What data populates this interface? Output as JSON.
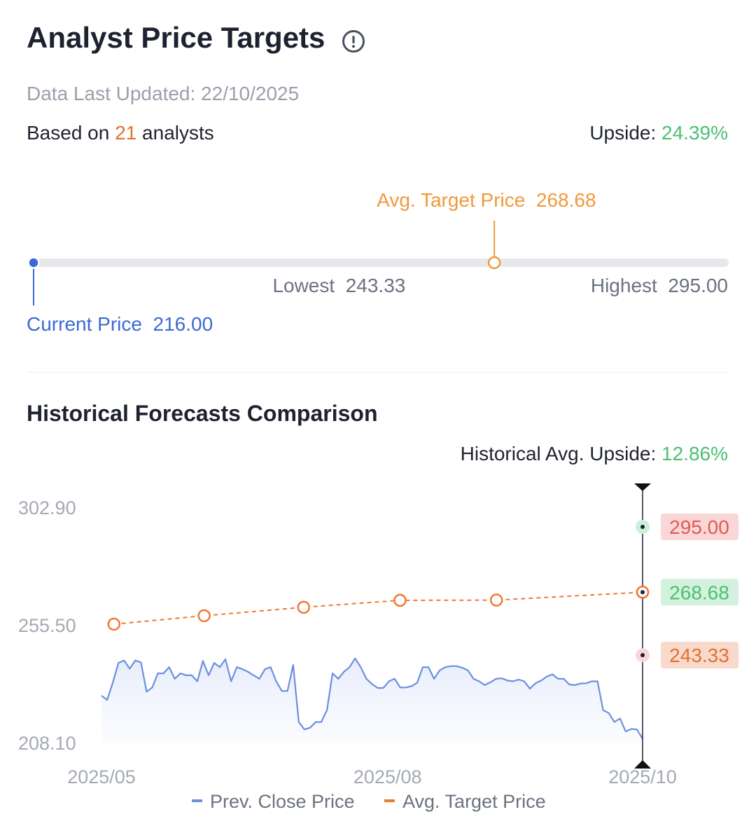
{
  "header": {
    "title": "Analyst Price Targets",
    "updated_label": "Data Last Updated: ",
    "updated_date": "22/10/2025",
    "based_prefix": "Based on ",
    "analyst_count": "21",
    "based_suffix": " analysts",
    "upside_label": "Upside: ",
    "upside_value": "24.39%"
  },
  "range": {
    "avg_label": "Avg. Target Price",
    "avg_value": "268.68",
    "lowest_label": "Lowest",
    "lowest_value": "243.33",
    "highest_label": "Highest",
    "highest_value": "295.00",
    "current_label": "Current Price",
    "current_value": "216.00",
    "scale_min": 216.0,
    "scale_max": 295.0,
    "colors": {
      "current": "#3d69d6",
      "track": "#e6e8ec",
      "low": "#e05a55",
      "mid": "#ee9a3a",
      "high": "#5cbe6e"
    }
  },
  "history": {
    "title": "Historical Forecasts Comparison",
    "upside_label": "Historical Avg. Upside: ",
    "upside_value": "12.86%"
  },
  "chart_data": {
    "type": "line",
    "y_ticks": [
      "302.90",
      "255.50",
      "208.10"
    ],
    "ylim": [
      208.1,
      302.9
    ],
    "x_ticks": [
      "2025/05",
      "2025/08",
      "2025/10"
    ],
    "x_range": [
      "2025-05-01",
      "2025-10-22"
    ],
    "x_tick_dates": [
      "2025-05-01",
      "2025-08-01",
      "2025-10-22"
    ],
    "legend_position": "bottom-center",
    "series": [
      {
        "name": "Prev. Close Price",
        "color": "#6c8fe0",
        "values": [
          227.0,
          225.3,
          232.2,
          240.2,
          241.2,
          237.9,
          241.2,
          240.4,
          228.6,
          230.3,
          236.0,
          236.0,
          238.5,
          233.8,
          236.0,
          235.2,
          235.2,
          232.8,
          241.0,
          235.2,
          240.2,
          238.5,
          241.7,
          232.8,
          238.5,
          237.7,
          236.6,
          235.2,
          233.8,
          237.7,
          238.5,
          232.8,
          228.9,
          228.9,
          239.4,
          216.4,
          213.4,
          214.1,
          216.4,
          216.4,
          221.2,
          236.0,
          233.8,
          236.6,
          238.5,
          242.0,
          238.5,
          233.8,
          231.7,
          230.1,
          230.1,
          232.8,
          233.8,
          230.3,
          230.3,
          230.8,
          232.2,
          238.5,
          238.5,
          233.8,
          237.2,
          238.5,
          238.9,
          238.9,
          238.3,
          237.2,
          233.8,
          232.8,
          231.3,
          232.4,
          233.8,
          234.0,
          233.1,
          232.8,
          233.5,
          232.8,
          229.8,
          232.0,
          233.1,
          234.7,
          235.6,
          233.8,
          233.8,
          231.5,
          231.3,
          231.9,
          232.0,
          232.8,
          232.8,
          221.2,
          220.0,
          216.4,
          217.8,
          212.6,
          213.6,
          213.4,
          209.6
        ],
        "points_note": ""
      },
      {
        "name": "Avg. Target Price",
        "color": "#ec7a35",
        "x": [
          "2025-05-05",
          "2025-06-03",
          "2025-07-05",
          "2025-08-05",
          "2025-09-05",
          "2025-10-22"
        ],
        "values": [
          255.8,
          259.2,
          262.6,
          265.4,
          265.5,
          268.68
        ]
      }
    ],
    "markers": [
      {
        "label": "295.00",
        "value": 295.0,
        "label_color": "#e05a55",
        "bg": "#f8d7d6",
        "dot_bg": "#cdeed7"
      },
      {
        "label": "268.68",
        "value": 268.68,
        "label_color": "#4cbf72",
        "bg": "#d3f1dc",
        "dot_bg": "#ffffff"
      },
      {
        "label": "243.33",
        "value": 243.33,
        "label_color": "#e2712f",
        "bg": "#f8d9cb",
        "dot_bg": "#f8d7d6"
      }
    ]
  }
}
